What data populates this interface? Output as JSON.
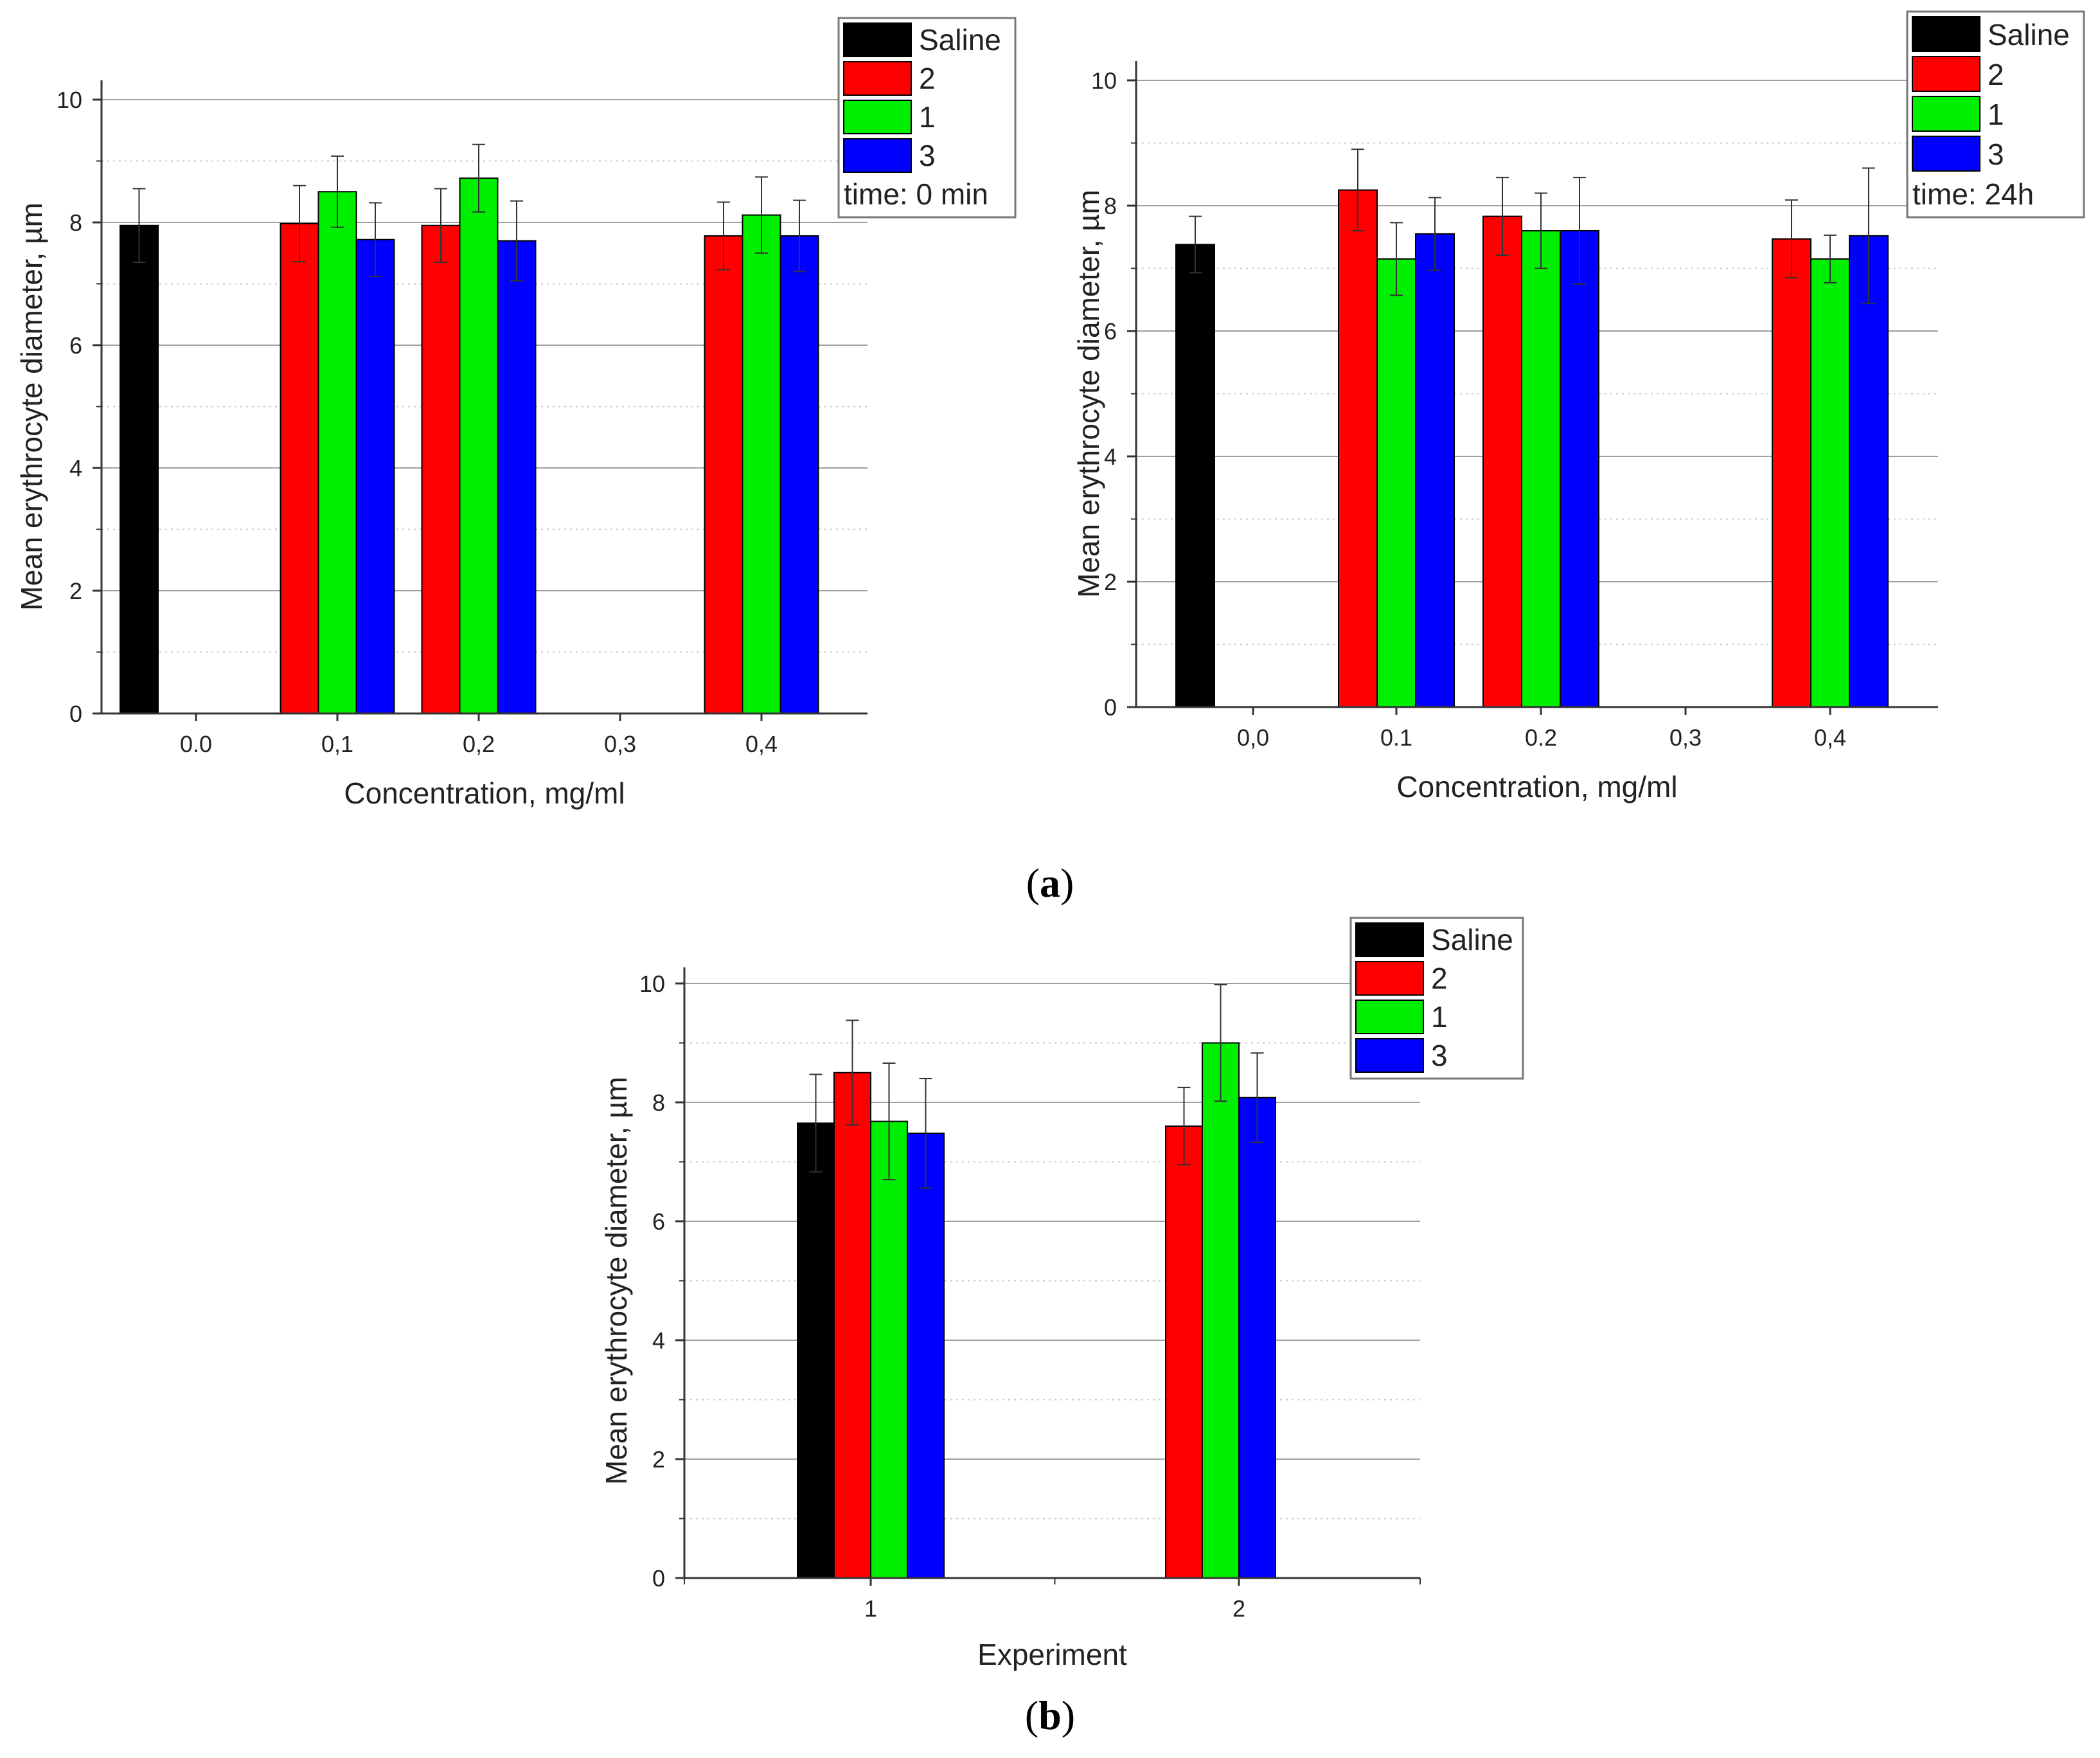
{
  "figure": {
    "label_a": "a",
    "label_b": "b",
    "colors": {
      "Saline": "#000000",
      "2": "#ff0000",
      "1": "#00ee00",
      "3": "#0000ff",
      "grid_major": "#a0a0a0",
      "grid_minor": "#c8c8c8"
    }
  },
  "chart_data": [
    {
      "id": "a-left",
      "type": "bar",
      "xlabel": "Concentration, mg/ml",
      "ylabel": "Mean erythrocyte diameter, µm",
      "ylim": [
        0,
        10
      ],
      "yticks": [
        0,
        2,
        4,
        6,
        8,
        10
      ],
      "categories": [
        "0.0",
        "0,1",
        "0,2",
        "0,3",
        "0,4"
      ],
      "legend": {
        "entries": [
          "Saline",
          "2",
          "1",
          "3"
        ],
        "note": "time: 0 min",
        "position": "top-right"
      },
      "series": [
        {
          "name": "Saline",
          "values": [
            7.95,
            null,
            null,
            null,
            null
          ],
          "errors": [
            0.6,
            null,
            null,
            null,
            null
          ]
        },
        {
          "name": "2",
          "values": [
            null,
            7.98,
            7.95,
            null,
            7.78
          ],
          "errors": [
            null,
            0.62,
            0.6,
            null,
            0.55
          ]
        },
        {
          "name": "1",
          "values": [
            null,
            8.5,
            8.72,
            null,
            8.12
          ],
          "errors": [
            null,
            0.58,
            0.55,
            null,
            0.62
          ]
        },
        {
          "name": "3",
          "values": [
            null,
            7.72,
            7.7,
            null,
            7.78
          ],
          "errors": [
            null,
            0.6,
            0.65,
            null,
            0.58
          ]
        }
      ]
    },
    {
      "id": "a-right",
      "type": "bar",
      "xlabel": "Concentration, mg/ml",
      "ylabel": "Mean erythrocyte diameter, µm",
      "ylim": [
        0,
        10
      ],
      "yticks": [
        0,
        2,
        4,
        6,
        8,
        10
      ],
      "categories": [
        "0,0",
        "0.1",
        "0.2",
        "0,3",
        "0,4"
      ],
      "legend": {
        "entries": [
          "Saline",
          "2",
          "1",
          "3"
        ],
        "note": "time: 24h",
        "position": "top-right"
      },
      "series": [
        {
          "name": "Saline",
          "values": [
            7.38,
            null,
            null,
            null,
            null
          ],
          "errors": [
            0.45,
            null,
            null,
            null,
            null
          ]
        },
        {
          "name": "2",
          "values": [
            null,
            8.25,
            7.83,
            null,
            7.47
          ],
          "errors": [
            null,
            0.65,
            0.62,
            null,
            0.62
          ]
        },
        {
          "name": "1",
          "values": [
            null,
            7.15,
            7.6,
            null,
            7.15
          ],
          "errors": [
            null,
            0.58,
            0.6,
            null,
            0.38
          ]
        },
        {
          "name": "3",
          "values": [
            null,
            7.55,
            7.6,
            null,
            7.52
          ],
          "errors": [
            null,
            0.58,
            0.85,
            null,
            1.08
          ]
        }
      ]
    },
    {
      "id": "b",
      "type": "bar",
      "xlabel": "Experiment",
      "ylabel": "Mean erythrocyte diameter, µm",
      "ylim": [
        0,
        10
      ],
      "yticks": [
        0,
        2,
        4,
        6,
        8,
        10
      ],
      "categories": [
        "1",
        "2"
      ],
      "legend": {
        "entries": [
          "Saline",
          "2",
          "1",
          "3"
        ],
        "note": "",
        "position": "top-right"
      },
      "series": [
        {
          "name": "Saline",
          "values": [
            7.65,
            null
          ],
          "errors": [
            0.82,
            null
          ]
        },
        {
          "name": "2",
          "values": [
            8.5,
            7.6
          ],
          "errors": [
            0.88,
            0.65
          ]
        },
        {
          "name": "1",
          "values": [
            7.68,
            9.0
          ],
          "errors": [
            0.98,
            0.98
          ]
        },
        {
          "name": "3",
          "values": [
            7.48,
            8.08
          ],
          "errors": [
            0.92,
            0.75
          ]
        }
      ]
    }
  ]
}
